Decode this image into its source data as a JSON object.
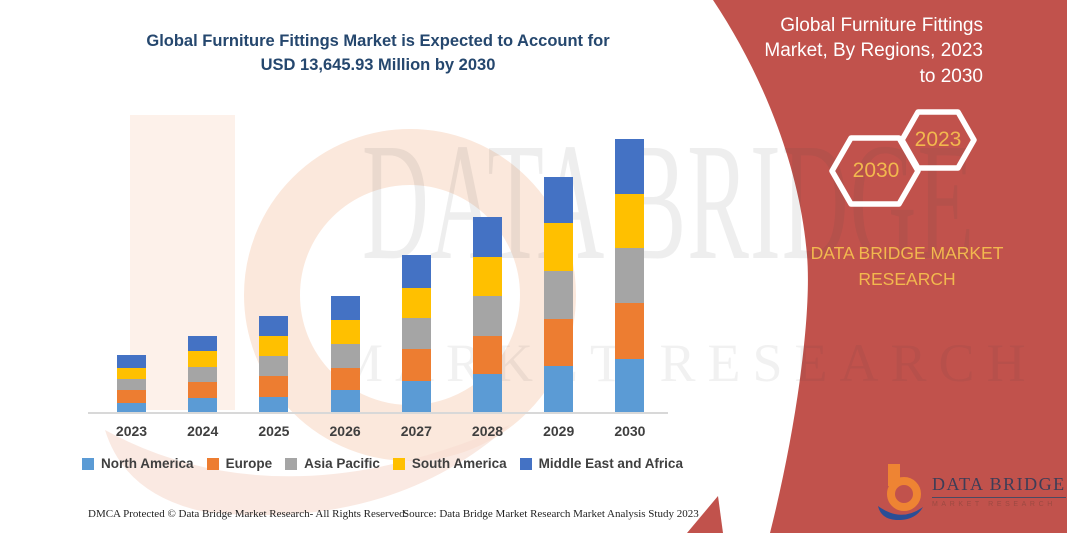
{
  "title": {
    "text": "Global Furniture Fittings Market is Expected to Account for USD 13,645.93 Million by 2030"
  },
  "banner": {
    "heading": "Global Furniture Fittings Market, By Regions, 2023 to 2030",
    "hexagon_large": "2030",
    "hexagon_small": "2023",
    "brand": "DATA BRIDGE MARKET RESEARCH",
    "red": "#c1524c",
    "gold": "#f2b84e"
  },
  "watermark": {
    "line1": "DATA BRIDGE",
    "line2": "MARKET RESEARCH"
  },
  "logo": {
    "name": "DATA BRIDGE",
    "sub": "MARKET RESEARCH"
  },
  "footer": {
    "left": "DMCA Protected © Data Bridge Market Research- All Rights Reserved.",
    "right": "Source: Data Bridge Market Research Market Analysis Study 2023"
  },
  "chart_data": {
    "type": "bar",
    "stacked": true,
    "title": "Global Furniture Fittings Market is Expected to Account for USD 13,645.93 Million by 2030",
    "unit": "USD Million",
    "categories": [
      "2023",
      "2024",
      "2025",
      "2026",
      "2027",
      "2028",
      "2029",
      "2030"
    ],
    "series": [
      {
        "name": "North America",
        "color": "#5b9bd5",
        "values": [
          500,
          750,
          800,
          1160,
          1585,
          1945,
          2350,
          2674
        ]
      },
      {
        "name": "Europe",
        "color": "#ed7d31",
        "values": [
          650,
          780,
          1040,
          1080,
          1585,
          1875,
          2350,
          2789
        ]
      },
      {
        "name": "Asia Pacific",
        "color": "#a5a5a5",
        "values": [
          520,
          765,
          1000,
          1195,
          1550,
          1990,
          2350,
          2754
        ]
      },
      {
        "name": "South America",
        "color": "#ffc000",
        "values": [
          580,
          780,
          1000,
          1210,
          1530,
          1940,
          2400,
          2704.93
        ]
      },
      {
        "name": "Middle East and Africa",
        "color": "#4472c4",
        "values": [
          630,
          760,
          990,
          1180,
          1618,
          2010,
          2303,
          2724
        ]
      }
    ],
    "totals": [
      2880,
      3835,
      4830,
      5825,
      7868,
      9760,
      11753,
      13645.93
    ],
    "ylim": [
      0,
      14000
    ],
    "y_axis_visible": false,
    "grid": false,
    "legend_position": "bottom",
    "values_estimated_from_pixels": true
  }
}
